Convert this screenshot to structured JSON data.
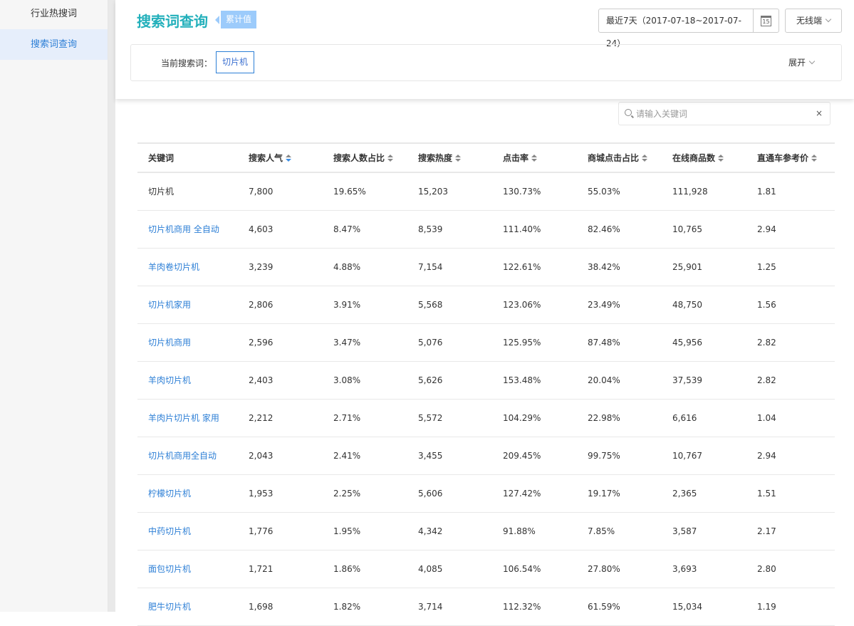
{
  "sidebar": {
    "items": [
      {
        "label": "行业热搜词",
        "active": false
      },
      {
        "label": "搜索词查询",
        "active": true
      }
    ]
  },
  "header": {
    "title": "搜索词查询",
    "badge": "累计值",
    "date_range": "最近7天（2017-07-18~2017-07-24）",
    "calendar_icon": "15",
    "device": "无线端",
    "filter_label": "当前搜索词：",
    "current_term": "切片机",
    "expand": "展开"
  },
  "search": {
    "placeholder": "请输入关键词",
    "value": "",
    "clear": "×"
  },
  "table": {
    "headers": [
      "关键词",
      "搜索人气",
      "搜索人数占比",
      "搜索热度",
      "点击率",
      "商城点击占比",
      "在线商品数",
      "直通车参考价"
    ],
    "sort_active": "搜索人气",
    "rows": [
      [
        "切片机",
        "7,800",
        "19.65%",
        "15,203",
        "130.73%",
        "55.03%",
        "111,928",
        "1.81"
      ],
      [
        "切片机商用 全自动",
        "4,603",
        "8.47%",
        "8,539",
        "111.40%",
        "82.46%",
        "10,765",
        "2.94"
      ],
      [
        "羊肉卷切片机",
        "3,239",
        "4.88%",
        "7,154",
        "122.61%",
        "38.42%",
        "25,901",
        "1.25"
      ],
      [
        "切片机家用",
        "2,806",
        "3.91%",
        "5,568",
        "123.06%",
        "23.49%",
        "48,750",
        "1.56"
      ],
      [
        "切片机商用",
        "2,596",
        "3.47%",
        "5,076",
        "125.95%",
        "87.48%",
        "45,956",
        "2.82"
      ],
      [
        "羊肉切片机",
        "2,403",
        "3.08%",
        "5,626",
        "153.48%",
        "20.04%",
        "37,539",
        "2.82"
      ],
      [
        "羊肉片切片机 家用",
        "2,212",
        "2.71%",
        "5,572",
        "104.29%",
        "22.98%",
        "6,616",
        "1.04"
      ],
      [
        "切片机商用全自动",
        "2,043",
        "2.41%",
        "3,455",
        "209.45%",
        "99.75%",
        "10,767",
        "2.94"
      ],
      [
        "柠檬切片机",
        "1,953",
        "2.25%",
        "5,606",
        "127.42%",
        "19.17%",
        "2,365",
        "1.51"
      ],
      [
        "中药切片机",
        "1,776",
        "1.95%",
        "4,342",
        "91.88%",
        "7.85%",
        "3,587",
        "2.17"
      ],
      [
        "面包切片机",
        "1,721",
        "1.86%",
        "4,085",
        "106.54%",
        "27.80%",
        "3,693",
        "2.80"
      ],
      [
        "肥牛切片机",
        "1,698",
        "1.82%",
        "3,714",
        "112.32%",
        "61.59%",
        "15,034",
        "1.19"
      ]
    ]
  },
  "colors": {
    "title": "#23b0bb",
    "badge": "#9ccbfb",
    "link": "#2d7fd6"
  }
}
